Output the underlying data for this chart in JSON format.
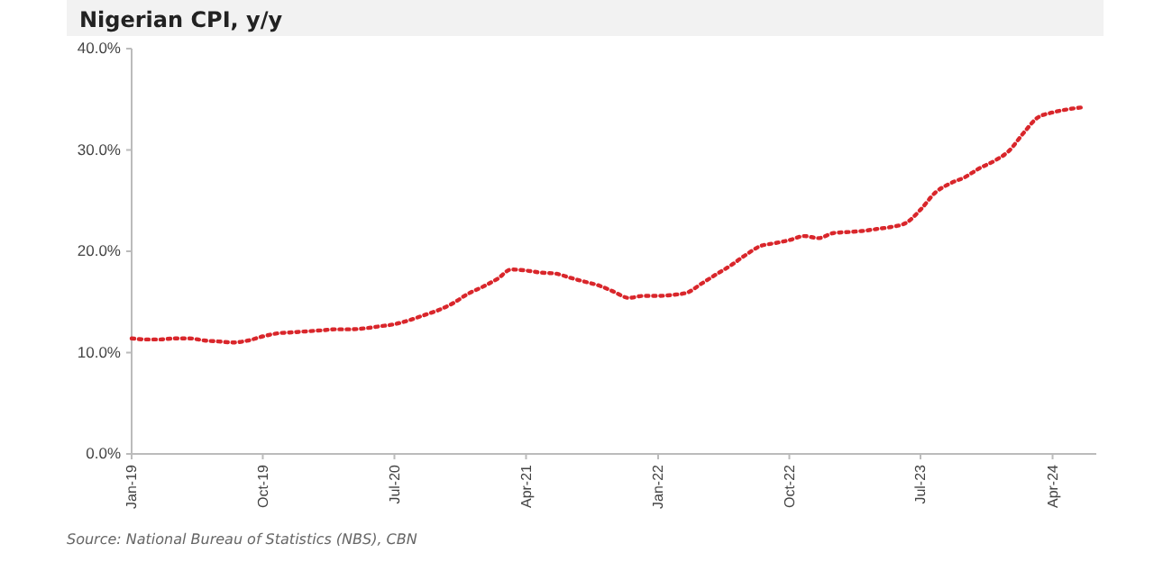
{
  "chart_data": {
    "type": "line",
    "title": "Nigerian CPI, y/y",
    "x": [
      "2019-01",
      "2019-02",
      "2019-03",
      "2019-04",
      "2019-05",
      "2019-06",
      "2019-07",
      "2019-08",
      "2019-09",
      "2019-10",
      "2019-11",
      "2019-12",
      "2020-01",
      "2020-02",
      "2020-03",
      "2020-04",
      "2020-05",
      "2020-06",
      "2020-07",
      "2020-08",
      "2020-09",
      "2020-10",
      "2020-11",
      "2020-12",
      "2021-01",
      "2021-02",
      "2021-03",
      "2021-04",
      "2021-05",
      "2021-06",
      "2021-07",
      "2021-08",
      "2021-09",
      "2021-10",
      "2021-11",
      "2021-12",
      "2022-01",
      "2022-02",
      "2022-03",
      "2022-04",
      "2022-05",
      "2022-06",
      "2022-07",
      "2022-08",
      "2022-09",
      "2022-10",
      "2022-11",
      "2022-12",
      "2023-01",
      "2023-02",
      "2023-03",
      "2023-04",
      "2023-05",
      "2023-06",
      "2023-07",
      "2023-08",
      "2023-09",
      "2023-10",
      "2023-11",
      "2023-12",
      "2024-01",
      "2024-02",
      "2024-03",
      "2024-04",
      "2024-05",
      "2024-06"
    ],
    "series": [
      {
        "color": "#d9262b",
        "values": [
          11.4,
          11.3,
          11.3,
          11.4,
          11.4,
          11.2,
          11.1,
          11.0,
          11.2,
          11.6,
          11.9,
          12.0,
          12.1,
          12.2,
          12.3,
          12.3,
          12.4,
          12.6,
          12.8,
          13.2,
          13.7,
          14.2,
          14.9,
          15.8,
          16.5,
          17.3,
          18.2,
          18.1,
          17.9,
          17.8,
          17.4,
          17.0,
          16.6,
          16.0,
          15.4,
          15.6,
          15.6,
          15.7,
          15.9,
          16.8,
          17.7,
          18.6,
          19.6,
          20.5,
          20.8,
          21.1,
          21.5,
          21.3,
          21.8,
          21.9,
          22.0,
          22.2,
          22.4,
          22.8,
          24.1,
          25.8,
          26.7,
          27.3,
          28.2,
          28.9,
          29.9,
          31.7,
          33.2,
          33.7,
          34.0,
          34.2
        ]
      }
    ],
    "xlim": [
      "2019-01",
      "2024-07"
    ],
    "xticks": [
      {
        "value": "2019-01",
        "label": "Jan-19"
      },
      {
        "value": "2019-10",
        "label": "Oct-19"
      },
      {
        "value": "2020-07",
        "label": "Jul-20"
      },
      {
        "value": "2021-04",
        "label": "Apr-21"
      },
      {
        "value": "2022-01",
        "label": "Jan-22"
      },
      {
        "value": "2022-10",
        "label": "Oct-22"
      },
      {
        "value": "2023-07",
        "label": "Jul-23"
      },
      {
        "value": "2024-04",
        "label": "Apr-24"
      }
    ],
    "ylim": [
      0,
      40
    ],
    "yticks": [
      {
        "value": 0,
        "label": "0.0%"
      },
      {
        "value": 10,
        "label": "10.0%"
      },
      {
        "value": 20,
        "label": "20.0%"
      },
      {
        "value": 30,
        "label": "30.0%"
      },
      {
        "value": 40,
        "label": "40.0%"
      }
    ],
    "grid": false,
    "marker": "none",
    "line_style": "dotted",
    "annotations": [
      "Source: National Bureau of Statistics (NBS), CBN"
    ]
  }
}
